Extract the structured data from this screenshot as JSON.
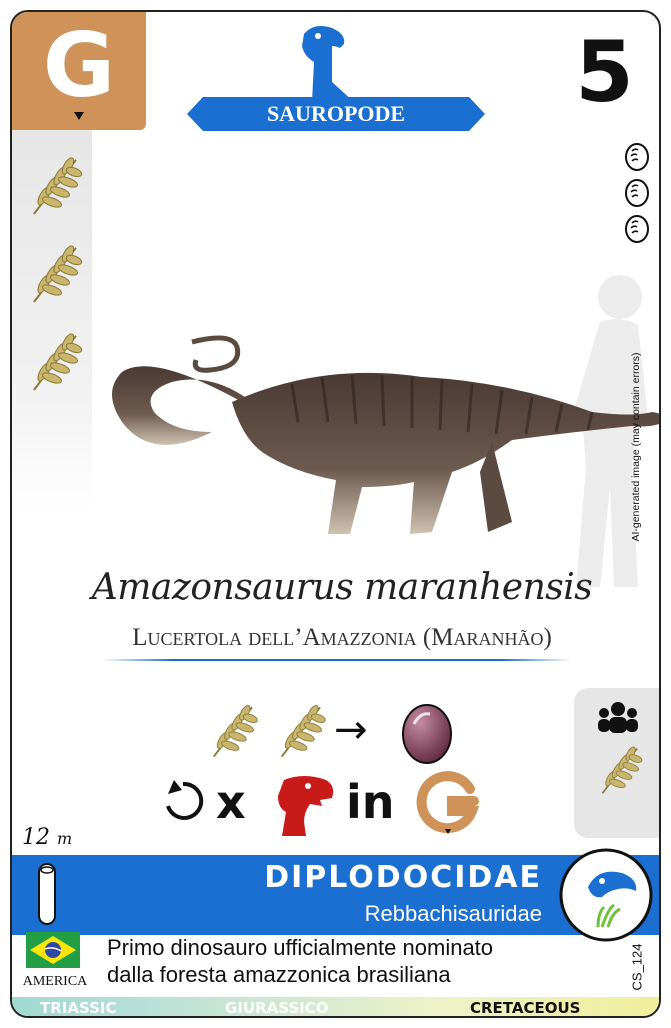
{
  "card": {
    "diet_letter": "G",
    "category": "SAUROPODE",
    "points": "5",
    "eggs_count": 3,
    "ai_note": "AI-generated image (may contain errors)",
    "scientific_name": "Amazonsaurus maranhensis",
    "common_name": "Lucertola dell’Amazzonia (Maranhão)",
    "ability": {
      "row1_arrow": "→",
      "row2_x": "x",
      "row2_in": "in",
      "row2_letter": "G"
    },
    "size": "12",
    "size_unit": "m",
    "family": "DIPLODOCIDAE",
    "subfamily": "Rebbachisauridae",
    "continent": "AMERICA",
    "description_line1": "Primo dinosauro ufficialmente nominato",
    "description_line2": "dalla foresta amazzonica brasiliana",
    "card_code": "CS_124",
    "periods": [
      "TRIASSIC",
      "GIURASSICO",
      "CRETACEOUS"
    ]
  },
  "colors": {
    "diet": "#cf935a",
    "accent_blue": "#1b6fd1",
    "leaf": "#c9b56c",
    "egg": "#7a3a55",
    "red_rex": "#c91a1a"
  },
  "icons": [
    "leaf-icon",
    "egg-icon",
    "sauropod-icon",
    "rotate-icon",
    "trex-icon",
    "bone-icon",
    "group-icon",
    "flag-brazil-icon"
  ]
}
